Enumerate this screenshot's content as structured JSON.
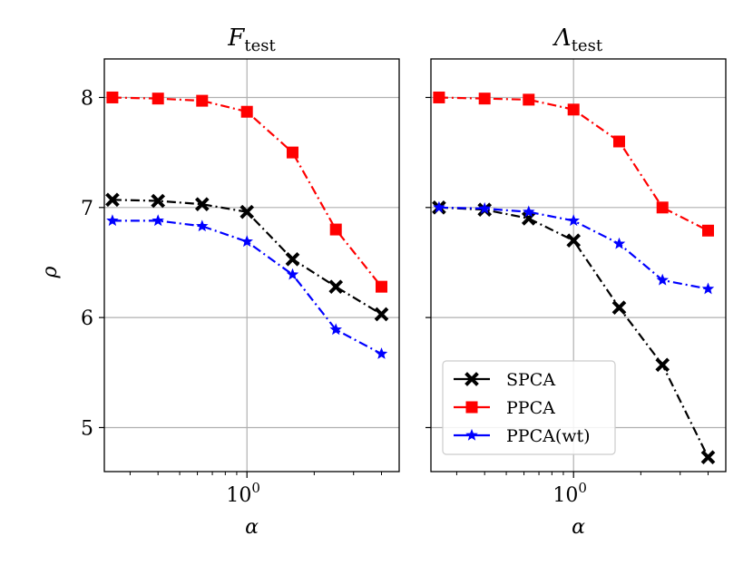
{
  "chart_data": {
    "type": "line",
    "shared": {
      "ylabel": "ρ",
      "xlabel": "α",
      "xscale": "log",
      "xlim": [
        0.23,
        4.8
      ],
      "ylim": [
        4.6,
        8.35
      ],
      "yticks": [
        {
          "value": 5,
          "label": "5"
        },
        {
          "value": 6,
          "label": "6"
        },
        {
          "value": 7,
          "label": "7"
        },
        {
          "value": 8,
          "label": "8"
        }
      ],
      "xticks": [
        {
          "value": 1,
          "base": "10",
          "exp": "0"
        }
      ],
      "grid": true,
      "legend_location": "lower-left of right panel"
    },
    "x": [
      0.25,
      0.4,
      0.63,
      1.0,
      1.6,
      2.5,
      4.0
    ],
    "panels": [
      {
        "title_main": "F",
        "title_sub": "test",
        "series": [
          {
            "name": "SPCA",
            "color": "#000000",
            "marker": "x",
            "values": [
              7.07,
              7.06,
              7.03,
              6.96,
              6.53,
              6.28,
              6.03
            ]
          },
          {
            "name": "PPCA",
            "color": "#ff0000",
            "marker": "square",
            "values": [
              8.0,
              7.99,
              7.97,
              7.87,
              7.5,
              6.8,
              6.28
            ]
          },
          {
            "name": "PPCA(wt)",
            "color": "#0000ff",
            "marker": "star",
            "values": [
              6.88,
              6.88,
              6.83,
              6.69,
              6.39,
              5.89,
              5.67
            ]
          }
        ]
      },
      {
        "title_main": "Λ",
        "title_sub": "test",
        "series": [
          {
            "name": "SPCA",
            "color": "#000000",
            "marker": "x",
            "values": [
              7.0,
              6.98,
              6.9,
              6.7,
              6.09,
              5.57,
              4.73
            ]
          },
          {
            "name": "PPCA",
            "color": "#ff0000",
            "marker": "square",
            "values": [
              8.0,
              7.99,
              7.98,
              7.89,
              7.6,
              7.0,
              6.79
            ]
          },
          {
            "name": "PPCA(wt)",
            "color": "#0000ff",
            "marker": "star",
            "values": [
              7.0,
              6.99,
              6.96,
              6.88,
              6.67,
              6.34,
              6.26
            ]
          }
        ]
      }
    ],
    "legend": [
      "SPCA",
      "PPCA",
      "PPCA(wt)"
    ]
  }
}
